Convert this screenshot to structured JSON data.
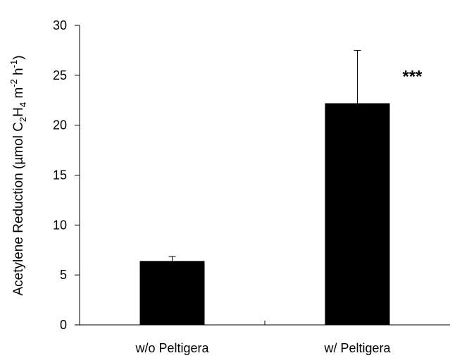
{
  "chart_data": {
    "type": "bar",
    "categories": [
      "w/o Peltigera",
      "w/ Peltigera"
    ],
    "values": [
      6.4,
      22.2
    ],
    "errors": [
      0.45,
      5.3
    ],
    "ylim": [
      0,
      30
    ],
    "yticks": [
      "0",
      "5",
      "10",
      "15",
      "20",
      "25",
      "30"
    ],
    "ylabel": {
      "prefix": "Acetylene Reduction (µmol C",
      "sub1": "2",
      "mid1": "H",
      "sub2": "4",
      "mid2": " m",
      "sup1": "-2",
      "mid3": " h",
      "sup2": "-1",
      "suffix": ")"
    },
    "annotations": [
      {
        "category_index": 1,
        "text": "***"
      }
    ],
    "bar_color": "#000000",
    "grid": false,
    "legend": "none"
  }
}
